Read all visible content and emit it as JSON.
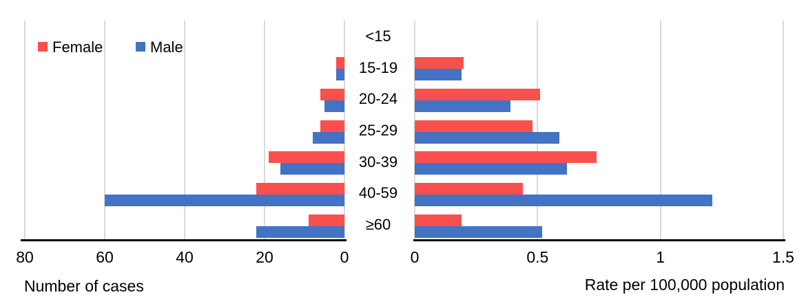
{
  "legend": {
    "female_label": "Female",
    "male_label": "Male"
  },
  "colors": {
    "female": "#F9504D",
    "male": "#4472C4",
    "gridline": "#D9D9D9",
    "axis_line": "#000000",
    "text": "#000000"
  },
  "categories": [
    "<15",
    "15-19",
    "20-24",
    "25-29",
    "30-39",
    "40-59",
    "≥60"
  ],
  "chart_data": [
    {
      "type": "bar",
      "panel": "left",
      "orientation": "horizontal",
      "xlabel": "Number of cases",
      "axis_direction": "right-to-left",
      "xlim": [
        80,
        0
      ],
      "tick_values": [
        80,
        60,
        40,
        20,
        0
      ],
      "tick_labels": [
        "80",
        "60",
        "40",
        "20",
        "0"
      ],
      "grid": true,
      "legend_position": "top-left",
      "categories": [
        "<15",
        "15-19",
        "20-24",
        "25-29",
        "30-39",
        "40-59",
        "≥60"
      ],
      "series": [
        {
          "name": "Female",
          "values": [
            0,
            2,
            6,
            6,
            19,
            22,
            9
          ]
        },
        {
          "name": "Male",
          "values": [
            0,
            2,
            5,
            8,
            16,
            60,
            22
          ]
        }
      ]
    },
    {
      "type": "bar",
      "panel": "right",
      "orientation": "horizontal",
      "xlabel": "Rate per 100,000 population",
      "axis_direction": "left-to-right",
      "xlim": [
        0,
        1.5
      ],
      "tick_values": [
        0,
        0.5,
        1,
        1.5
      ],
      "tick_labels": [
        "0",
        "0.5",
        "1",
        "1.5"
      ],
      "grid": true,
      "categories": [
        "<15",
        "15-19",
        "20-24",
        "25-29",
        "30-39",
        "40-59",
        "≥60"
      ],
      "series": [
        {
          "name": "Female",
          "values": [
            0,
            0.2,
            0.51,
            0.48,
            0.74,
            0.44,
            0.19
          ]
        },
        {
          "name": "Male",
          "values": [
            0,
            0.19,
            0.39,
            0.59,
            0.62,
            1.21,
            0.52
          ]
        }
      ]
    }
  ]
}
